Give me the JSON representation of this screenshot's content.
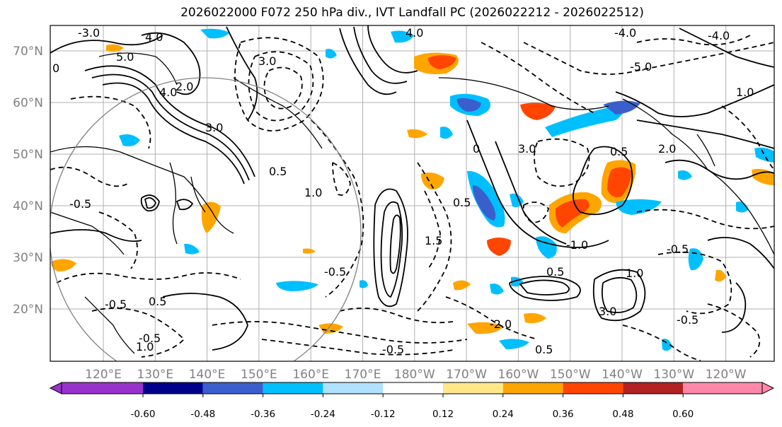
{
  "title": "2026022000 F072 250 hPa div., IVT Landfall PC (2026022212 - 2026022512)",
  "lat_labels": [
    "70°N",
    "60°N",
    "50°N",
    "40°N",
    "30°N",
    "20°N"
  ],
  "lon_labels": [
    "120°E",
    "130°E",
    "140°E",
    "150°E",
    "160°E",
    "170°E",
    "180°W",
    "170°W",
    "160°W",
    "150°W",
    "140°W",
    "130°W",
    "120°W"
  ],
  "contour_labels": [
    "-3.0",
    "5.0",
    "4.0",
    "3.0",
    "2.0",
    "0",
    "-0.5",
    "0.5",
    "1.0",
    "1.5",
    "-1.0",
    "-4.0",
    "-5.0",
    "-2.0"
  ],
  "colorbar": {
    "colors": [
      "#9932cc",
      "#00008b",
      "#3a5fcd",
      "#00bfff",
      "#b0e2ff",
      "#ffffff",
      "#ffe88a",
      "#ffa500",
      "#ff4500",
      "#b22222",
      "#ff88aa"
    ],
    "tick_labels": [
      "-0.60",
      "-0.48",
      "-0.36",
      "-0.24",
      "-0.12",
      "0.12",
      "0.24",
      "0.36",
      "0.48",
      "0.60"
    ]
  }
}
